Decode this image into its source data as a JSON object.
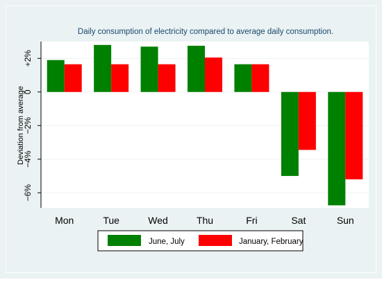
{
  "chart_data": {
    "type": "bar",
    "title": "Daily consumption of electricity compared to average daily consumption.",
    "ylabel": "Deviation from average",
    "xlabel": "",
    "categories": [
      "Mon",
      "Tue",
      "Wed",
      "Thu",
      "Fri",
      "Sat",
      "Sun"
    ],
    "series": [
      {
        "name": "June, July",
        "color": "#008000",
        "values": [
          1.9,
          2.8,
          2.7,
          2.75,
          1.65,
          -5.0,
          -6.75
        ]
      },
      {
        "name": "January, February",
        "color": "#ff0000",
        "values": [
          1.65,
          1.65,
          1.65,
          2.05,
          1.65,
          -3.45,
          -5.2
        ]
      }
    ],
    "ylim": [
      -6.9,
      3.0
    ],
    "yticks": [
      {
        "value": 2,
        "label": "+2%"
      },
      {
        "value": 0,
        "label": "0"
      },
      {
        "value": -2,
        "label": "−2%"
      },
      {
        "value": -4,
        "label": "−4%"
      },
      {
        "value": -6,
        "label": "−6%"
      }
    ],
    "grid": true,
    "legend_position": "bottom",
    "colors": {
      "outer_background": "#eaf2f3",
      "plot_background": "#ffffff",
      "grid": "#eaf2f3"
    }
  }
}
